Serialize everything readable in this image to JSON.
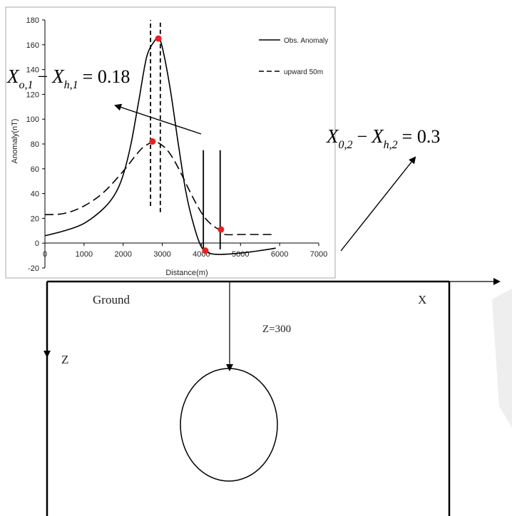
{
  "chart_data": {
    "type": "line",
    "xlabel": "Distance(m)",
    "ylabel": "Anomaly(nT)",
    "xlim": [
      0,
      7000
    ],
    "ylim": [
      -20,
      180
    ],
    "xticks": [
      0,
      1000,
      2000,
      3000,
      4000,
      5000,
      6000,
      7000
    ],
    "yticks": [
      -20,
      0,
      20,
      40,
      60,
      80,
      100,
      120,
      140,
      160,
      180
    ],
    "grid": false,
    "legend_position": "top-right",
    "series": [
      {
        "name": "Obs. Anomaly",
        "style": "solid",
        "x": [
          0,
          500,
          1000,
          1500,
          1800,
          2000,
          2200,
          2400,
          2600,
          2800,
          2900,
          3000,
          3200,
          3400,
          3600,
          3800,
          4000,
          4200,
          4500,
          5000,
          5500,
          5900
        ],
        "y": [
          6,
          10,
          16,
          28,
          40,
          55,
          80,
          115,
          150,
          163,
          165,
          158,
          125,
          82,
          42,
          15,
          -3,
          -8,
          -9,
          -8,
          -6,
          -4
        ]
      },
      {
        "name": "upward 50m",
        "style": "dashed",
        "x": [
          0,
          500,
          1000,
          1500,
          2000,
          2300,
          2500,
          2700,
          2800,
          2900,
          3100,
          3300,
          3500,
          3700,
          3900,
          4100,
          4300,
          4500,
          4600,
          5000,
          5500,
          5900
        ],
        "y": [
          23,
          24,
          30,
          41,
          58,
          70,
          77,
          81,
          82,
          81,
          76,
          67,
          55,
          42,
          30,
          20,
          14,
          10,
          7,
          7,
          7,
          7
        ]
      }
    ],
    "markers": [
      {
        "x": 2900,
        "y": 165
      },
      {
        "x": 2750,
        "y": 82
      },
      {
        "x": 4100,
        "y": -6
      },
      {
        "x": 4500,
        "y": 11
      }
    ],
    "vertical_lines": [
      {
        "x": 2700,
        "style": "dashed",
        "y_from": 30,
        "y_to": 180
      },
      {
        "x": 2950,
        "style": "dashed",
        "y_from": 25,
        "y_to": 180
      },
      {
        "x": 4050,
        "style": "solid",
        "y_from": -5,
        "y_to": 75
      },
      {
        "x": 4480,
        "style": "solid",
        "y_from": -5,
        "y_to": 75
      }
    ]
  },
  "annotations": {
    "eq1": {
      "a": "X",
      "a_sub": "o,1",
      "op": "−",
      "b": "X",
      "b_sub": "h,1",
      "rhs": "= 0.18"
    },
    "eq2": {
      "a": "X",
      "a_sub": "0,2",
      "op": "−",
      "b": "X",
      "b_sub": "h,2",
      "rhs": "= 0.3"
    }
  },
  "model": {
    "ground_label": "Ground",
    "x_label": "X",
    "z_label": "Z",
    "depth_label": "Z=300"
  }
}
